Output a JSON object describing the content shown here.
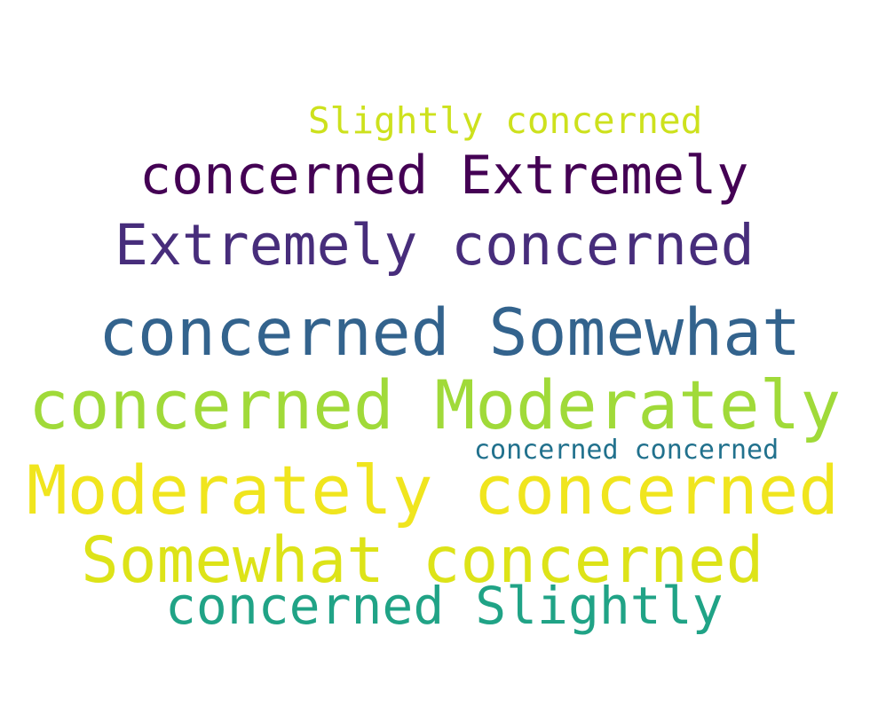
{
  "word_cloud": {
    "words": [
      {
        "text": "Slightly concerned",
        "color": "#cde11d"
      },
      {
        "text": "concerned Extremely",
        "color": "#440154"
      },
      {
        "text": "Extremely concerned",
        "color": "#472d7b"
      },
      {
        "text": "concerned Somewhat",
        "color": "#33638d"
      },
      {
        "text": "concerned Moderately",
        "color": "#a0da39"
      },
      {
        "text": "concerned concerned",
        "color": "#21718d"
      },
      {
        "text": "Moderately concerned",
        "color": "#f0e51e"
      },
      {
        "text": "Somewhat concerned",
        "color": "#dde318"
      },
      {
        "text": "concerned Slightly",
        "color": "#20a386"
      }
    ]
  }
}
